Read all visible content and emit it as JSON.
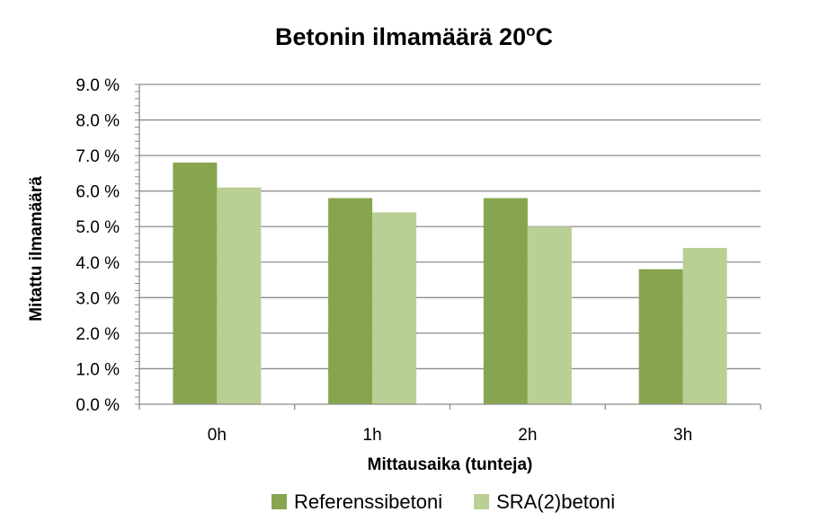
{
  "chart_data": {
    "type": "bar",
    "title": {
      "main": "Betonin ilmamäärä 20",
      "superscript": "o",
      "suffix": "C"
    },
    "xlabel": "Mittausaika (tunteja)",
    "ylabel": "Mitattu ilmamäärä",
    "categories": [
      "0h",
      "1h",
      "2h",
      "3h"
    ],
    "series": [
      {
        "name": "Referenssibetoni",
        "values": [
          6.8,
          5.8,
          5.8,
          3.8
        ],
        "color": "#86a54e"
      },
      {
        "name": "SRA(2)betoni",
        "values": [
          6.1,
          5.4,
          5.0,
          4.4
        ],
        "color": "#b9cf94"
      }
    ],
    "ylim": [
      0,
      9
    ],
    "yticks": [
      "0.0 %",
      "1.0 %",
      "2.0 %",
      "3.0 %",
      "4.0 %",
      "5.0 %",
      "6.0 %",
      "7.0 %",
      "8.0 %",
      "9.0 %"
    ],
    "grid": true,
    "legend_position": "bottom"
  }
}
